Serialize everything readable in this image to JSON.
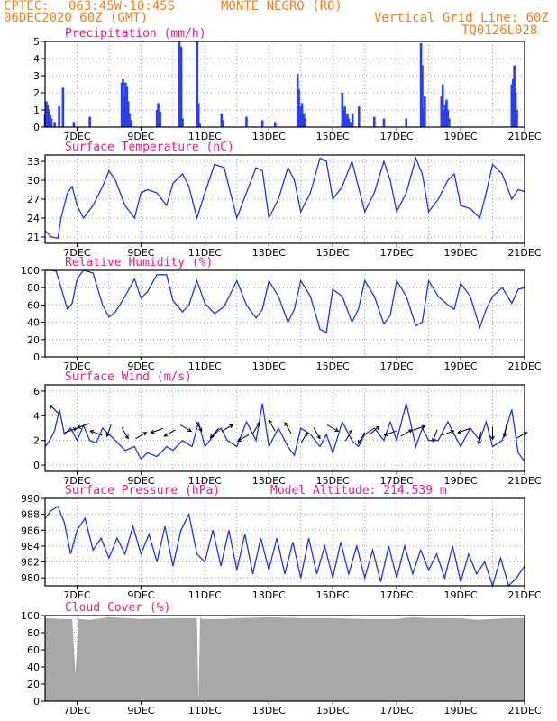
{
  "header": {
    "org": "CPTEC:",
    "coords": "063:45W-10:45S",
    "location": "MONTE NEGRO (RO)",
    "run": "06DEC2020 60Z (GMT)",
    "grid_note": "Vertical Grid Line: 60Z",
    "code": "TQ0126L028"
  },
  "colors": {
    "header": "#f08020",
    "title": "#e0208a",
    "series": "#2233dd",
    "bars": "#2b3ff0",
    "cloud": "#a8a8a8",
    "grid": "#999999"
  },
  "x_tick_labels": [
    "7DEC",
    "9DEC",
    "11DEC",
    "13DEC",
    "15DEC",
    "17DEC",
    "19DEC",
    "21DEC"
  ],
  "chart_data": [
    {
      "id": "precip",
      "type": "bar",
      "title": "Precipitation (mm/h)",
      "ylim": [
        0,
        5
      ],
      "yticks": [
        0,
        1,
        2,
        3,
        4,
        5
      ],
      "x": [
        6.0,
        6.04,
        6.08,
        6.12,
        6.16,
        6.2,
        6.3,
        6.44,
        6.56,
        6.9,
        7.4,
        8.4,
        8.44,
        8.48,
        8.52,
        8.56,
        8.6,
        8.64,
        8.7,
        9.5,
        9.54,
        9.6,
        10.2,
        10.26,
        10.3,
        10.76,
        10.8,
        10.84,
        11.52,
        11.56,
        12.3,
        12.8,
        13.2,
        13.9,
        13.94,
        13.98,
        14.04,
        14.1,
        14.14,
        15.3,
        15.34,
        15.38,
        15.42,
        15.46,
        15.5,
        15.56,
        15.62,
        15.82,
        16.3,
        16.6,
        17.3,
        17.76,
        17.8,
        17.84,
        17.88,
        18.4,
        18.44,
        18.48,
        18.52,
        18.56,
        18.6,
        18.64,
        20.6,
        20.64,
        20.68,
        20.72,
        20.76
      ],
      "values": [
        0.8,
        1.5,
        1.3,
        1.0,
        0.7,
        0.5,
        0.3,
        1.2,
        2.3,
        0.3,
        0.6,
        2.6,
        2.8,
        1.8,
        2.6,
        2.4,
        1.5,
        0.8,
        0.4,
        1.0,
        1.4,
        0.9,
        5.0,
        4.7,
        0.5,
        5.0,
        1.4,
        0.2,
        0.8,
        0.4,
        0.6,
        0.4,
        0.3,
        3.1,
        2.2,
        1.2,
        1.4,
        0.8,
        0.5,
        2.0,
        1.0,
        1.2,
        0.6,
        0.8,
        0.5,
        0.3,
        0.8,
        1.2,
        0.6,
        0.5,
        0.5,
        4.9,
        3.6,
        1.1,
        1.8,
        1.8,
        2.5,
        1.0,
        1.3,
        1.6,
        1.0,
        0.5,
        2.5,
        2.8,
        3.6,
        2.0,
        1.0
      ]
    },
    {
      "id": "temp",
      "type": "line",
      "title": "Surface Temperature (nC)",
      "ylim": [
        20,
        34
      ],
      "yticks": [
        21,
        24,
        27,
        30,
        33
      ],
      "x": [
        6.0,
        6.2,
        6.4,
        6.5,
        6.7,
        6.85,
        7.0,
        7.2,
        7.5,
        7.8,
        8.0,
        8.2,
        8.5,
        8.8,
        9.0,
        9.2,
        9.5,
        9.8,
        10.0,
        10.3,
        10.5,
        10.75,
        11.0,
        11.3,
        11.6,
        12.0,
        12.3,
        12.6,
        12.8,
        13.0,
        13.3,
        13.6,
        13.8,
        14.0,
        14.3,
        14.6,
        14.8,
        15.0,
        15.3,
        15.6,
        15.8,
        16.0,
        16.3,
        16.6,
        16.8,
        17.0,
        17.3,
        17.6,
        17.8,
        18.0,
        18.3,
        18.6,
        18.8,
        19.0,
        19.3,
        19.6,
        19.8,
        20.0,
        20.3,
        20.6,
        20.8,
        21.0
      ],
      "y": [
        22,
        21,
        20.8,
        24,
        28,
        29,
        26,
        24,
        26,
        29,
        31.5,
        30,
        26,
        24,
        28,
        28.5,
        28,
        26,
        29.5,
        31,
        29,
        24,
        28,
        32.5,
        32,
        24,
        28,
        32,
        31.5,
        24,
        27,
        32,
        30,
        25,
        28,
        33.5,
        33,
        27,
        29,
        33,
        29,
        25,
        28,
        33,
        30,
        25,
        28,
        33.5,
        31,
        25,
        27,
        30,
        31,
        26,
        25.5,
        24,
        28,
        32.5,
        31,
        27,
        28.5,
        28.2
      ]
    },
    {
      "id": "rh",
      "type": "line",
      "title": "Relative Humidity (%)",
      "ylim": [
        0,
        100
      ],
      "yticks": [
        0,
        20,
        40,
        60,
        80,
        100
      ],
      "x": [
        6.0,
        6.2,
        6.35,
        6.5,
        6.7,
        6.85,
        7.0,
        7.2,
        7.5,
        7.8,
        8.0,
        8.2,
        8.5,
        8.8,
        9.0,
        9.2,
        9.5,
        9.8,
        10.0,
        10.3,
        10.5,
        10.75,
        11.0,
        11.3,
        11.6,
        12.0,
        12.3,
        12.6,
        12.8,
        13.0,
        13.3,
        13.6,
        13.8,
        14.0,
        14.3,
        14.6,
        14.8,
        15.0,
        15.3,
        15.6,
        15.8,
        16.0,
        16.3,
        16.6,
        16.8,
        17.0,
        17.3,
        17.6,
        17.8,
        18.0,
        18.3,
        18.6,
        18.8,
        19.0,
        19.3,
        19.6,
        19.8,
        20.0,
        20.3,
        20.6,
        20.8,
        21.0
      ],
      "y": [
        100,
        100,
        99,
        80,
        55,
        62,
        90,
        100,
        97,
        60,
        46,
        52,
        70,
        90,
        68,
        75,
        95,
        95,
        65,
        52,
        60,
        88,
        62,
        50,
        58,
        88,
        60,
        45,
        55,
        88,
        70,
        40,
        55,
        88,
        70,
        32,
        28,
        78,
        70,
        40,
        55,
        88,
        70,
        38,
        48,
        88,
        70,
        36,
        40,
        88,
        70,
        60,
        55,
        85,
        70,
        34,
        55,
        70,
        80,
        62,
        78,
        80
      ]
    },
    {
      "id": "wind",
      "type": "line",
      "title": "Surface Wind (m/s)",
      "ylim": [
        -0.5,
        6.5
      ],
      "yticks": [
        0,
        2,
        4,
        6
      ],
      "x": [
        6.0,
        6.15,
        6.3,
        6.45,
        6.6,
        6.8,
        7.0,
        7.2,
        7.4,
        7.6,
        7.8,
        8.0,
        8.2,
        8.5,
        8.8,
        9.0,
        9.2,
        9.5,
        9.8,
        10.0,
        10.3,
        10.6,
        10.8,
        11.0,
        11.3,
        11.5,
        11.7,
        12.0,
        12.3,
        12.6,
        12.8,
        13.0,
        13.3,
        13.6,
        13.8,
        14.0,
        14.3,
        14.6,
        14.8,
        15.0,
        15.3,
        15.6,
        15.8,
        16.0,
        16.3,
        16.6,
        16.8,
        17.0,
        17.3,
        17.6,
        17.8,
        18.0,
        18.3,
        18.6,
        18.8,
        19.0,
        19.3,
        19.6,
        19.8,
        20.0,
        20.3,
        20.6,
        20.8,
        21.0
      ],
      "y": [
        1.5,
        2.0,
        2.8,
        4.5,
        2.5,
        3.0,
        2.0,
        3.2,
        2.0,
        1.8,
        3.0,
        2.5,
        2.0,
        1.2,
        1.5,
        0.5,
        1.0,
        0.7,
        1.5,
        1.2,
        2.0,
        1.5,
        3.5,
        1.5,
        2.5,
        3.0,
        2.0,
        1.5,
        3.5,
        2.0,
        5.0,
        1.5,
        3.0,
        1.5,
        0.8,
        3.0,
        2.5,
        1.5,
        2.5,
        1.0,
        3.5,
        2.0,
        1.5,
        2.5,
        3.0,
        2.0,
        3.5,
        2.0,
        5.0,
        1.5,
        3.0,
        2.0,
        2.0,
        3.5,
        2.5,
        1.5,
        3.0,
        2.0,
        3.5,
        1.5,
        2.0,
        4.5,
        1.0,
        0.3
      ],
      "arrows": {
        "x": [
          6.3,
          6.8,
          7.2,
          7.6,
          8.0,
          8.5,
          9.0,
          9.5,
          9.9,
          10.4,
          10.8,
          11.3,
          11.7,
          12.2,
          12.6,
          13.1,
          13.6,
          14.1,
          14.5,
          15.0,
          15.5,
          15.9,
          16.3,
          16.8,
          17.3,
          17.7,
          18.2,
          18.6,
          19.1,
          19.6,
          20.0,
          20.4,
          20.9
        ],
        "y": [
          4.5,
          2.8,
          3.2,
          2.6,
          2.8,
          2.6,
          2.4,
          2.8,
          2.6,
          3.0,
          3.2,
          2.6,
          3.0,
          2.2,
          3.0,
          3.2,
          3.0,
          2.2,
          2.6,
          3.0,
          2.4,
          2.2,
          2.8,
          2.6,
          2.6,
          3.0,
          2.4,
          2.6,
          2.8,
          2.2,
          2.6,
          2.8,
          2.4
        ],
        "dir_deg": [
          135,
          20,
          200,
          160,
          250,
          300,
          30,
          200,
          210,
          330,
          300,
          230,
          30,
          210,
          60,
          120,
          120,
          60,
          300,
          330,
          60,
          240,
          40,
          200,
          30,
          20,
          250,
          20,
          200,
          260,
          270,
          260,
          30
        ]
      }
    },
    {
      "id": "press",
      "type": "line",
      "title": "Surface Pressure (hPa)",
      "annotation": "Model Altitude: 214.539  m",
      "ylim": [
        979,
        990
      ],
      "yticks": [
        980,
        982,
        984,
        986,
        988,
        990
      ],
      "x": [
        6.0,
        6.2,
        6.4,
        6.6,
        6.8,
        7.0,
        7.25,
        7.5,
        7.75,
        8.0,
        8.25,
        8.5,
        8.75,
        9.0,
        9.25,
        9.5,
        9.75,
        10.0,
        10.25,
        10.5,
        10.75,
        11.0,
        11.25,
        11.5,
        11.75,
        12.0,
        12.25,
        12.5,
        12.75,
        13.0,
        13.25,
        13.5,
        13.75,
        14.0,
        14.25,
        14.5,
        14.75,
        15.0,
        15.25,
        15.5,
        15.75,
        16.0,
        16.25,
        16.5,
        16.75,
        17.0,
        17.25,
        17.5,
        17.75,
        18.0,
        18.25,
        18.5,
        18.75,
        19.0,
        19.25,
        19.5,
        19.75,
        20.0,
        20.25,
        20.5,
        20.75,
        21.0
      ],
      "y": [
        987.5,
        988.5,
        989.0,
        987.0,
        983.0,
        986.0,
        987.5,
        983.5,
        985.0,
        982.5,
        985.0,
        983.0,
        986.5,
        983.0,
        985.5,
        982.0,
        986.5,
        981.5,
        986.0,
        988.0,
        983.0,
        982.0,
        986.0,
        981.5,
        986.0,
        981.0,
        985.5,
        980.5,
        985.0,
        981.0,
        985.0,
        980.5,
        984.5,
        980.0,
        985.0,
        980.5,
        984.0,
        980.0,
        984.5,
        980.5,
        984.0,
        980.0,
        983.5,
        979.5,
        984.0,
        980.0,
        984.0,
        980.5,
        983.5,
        981.0,
        983.0,
        980.0,
        984.0,
        979.5,
        983.0,
        980.5,
        982.0,
        979.0,
        982.5,
        979.0,
        980.0,
        981.5
      ]
    },
    {
      "id": "cloud",
      "type": "area",
      "title": "Cloud Cover (%)",
      "ylim": [
        0,
        100
      ],
      "yticks": [
        0,
        20,
        40,
        60,
        80,
        100
      ],
      "x": [
        6.0,
        6.5,
        6.85,
        6.95,
        7.05,
        7.4,
        8.0,
        9.0,
        10.0,
        10.5,
        10.75,
        10.8,
        10.85,
        10.9,
        11.5,
        12.0,
        13.0,
        14.0,
        15.0,
        16.0,
        17.0,
        17.5,
        18.0,
        19.0,
        19.5,
        20.0,
        20.5,
        21.0
      ],
      "y": [
        97,
        96,
        96,
        32,
        96,
        95,
        98,
        96,
        97,
        97,
        97,
        2,
        98,
        96,
        96,
        97,
        98,
        97,
        97,
        96,
        96,
        98,
        97,
        97,
        95,
        96,
        97,
        97
      ]
    }
  ]
}
